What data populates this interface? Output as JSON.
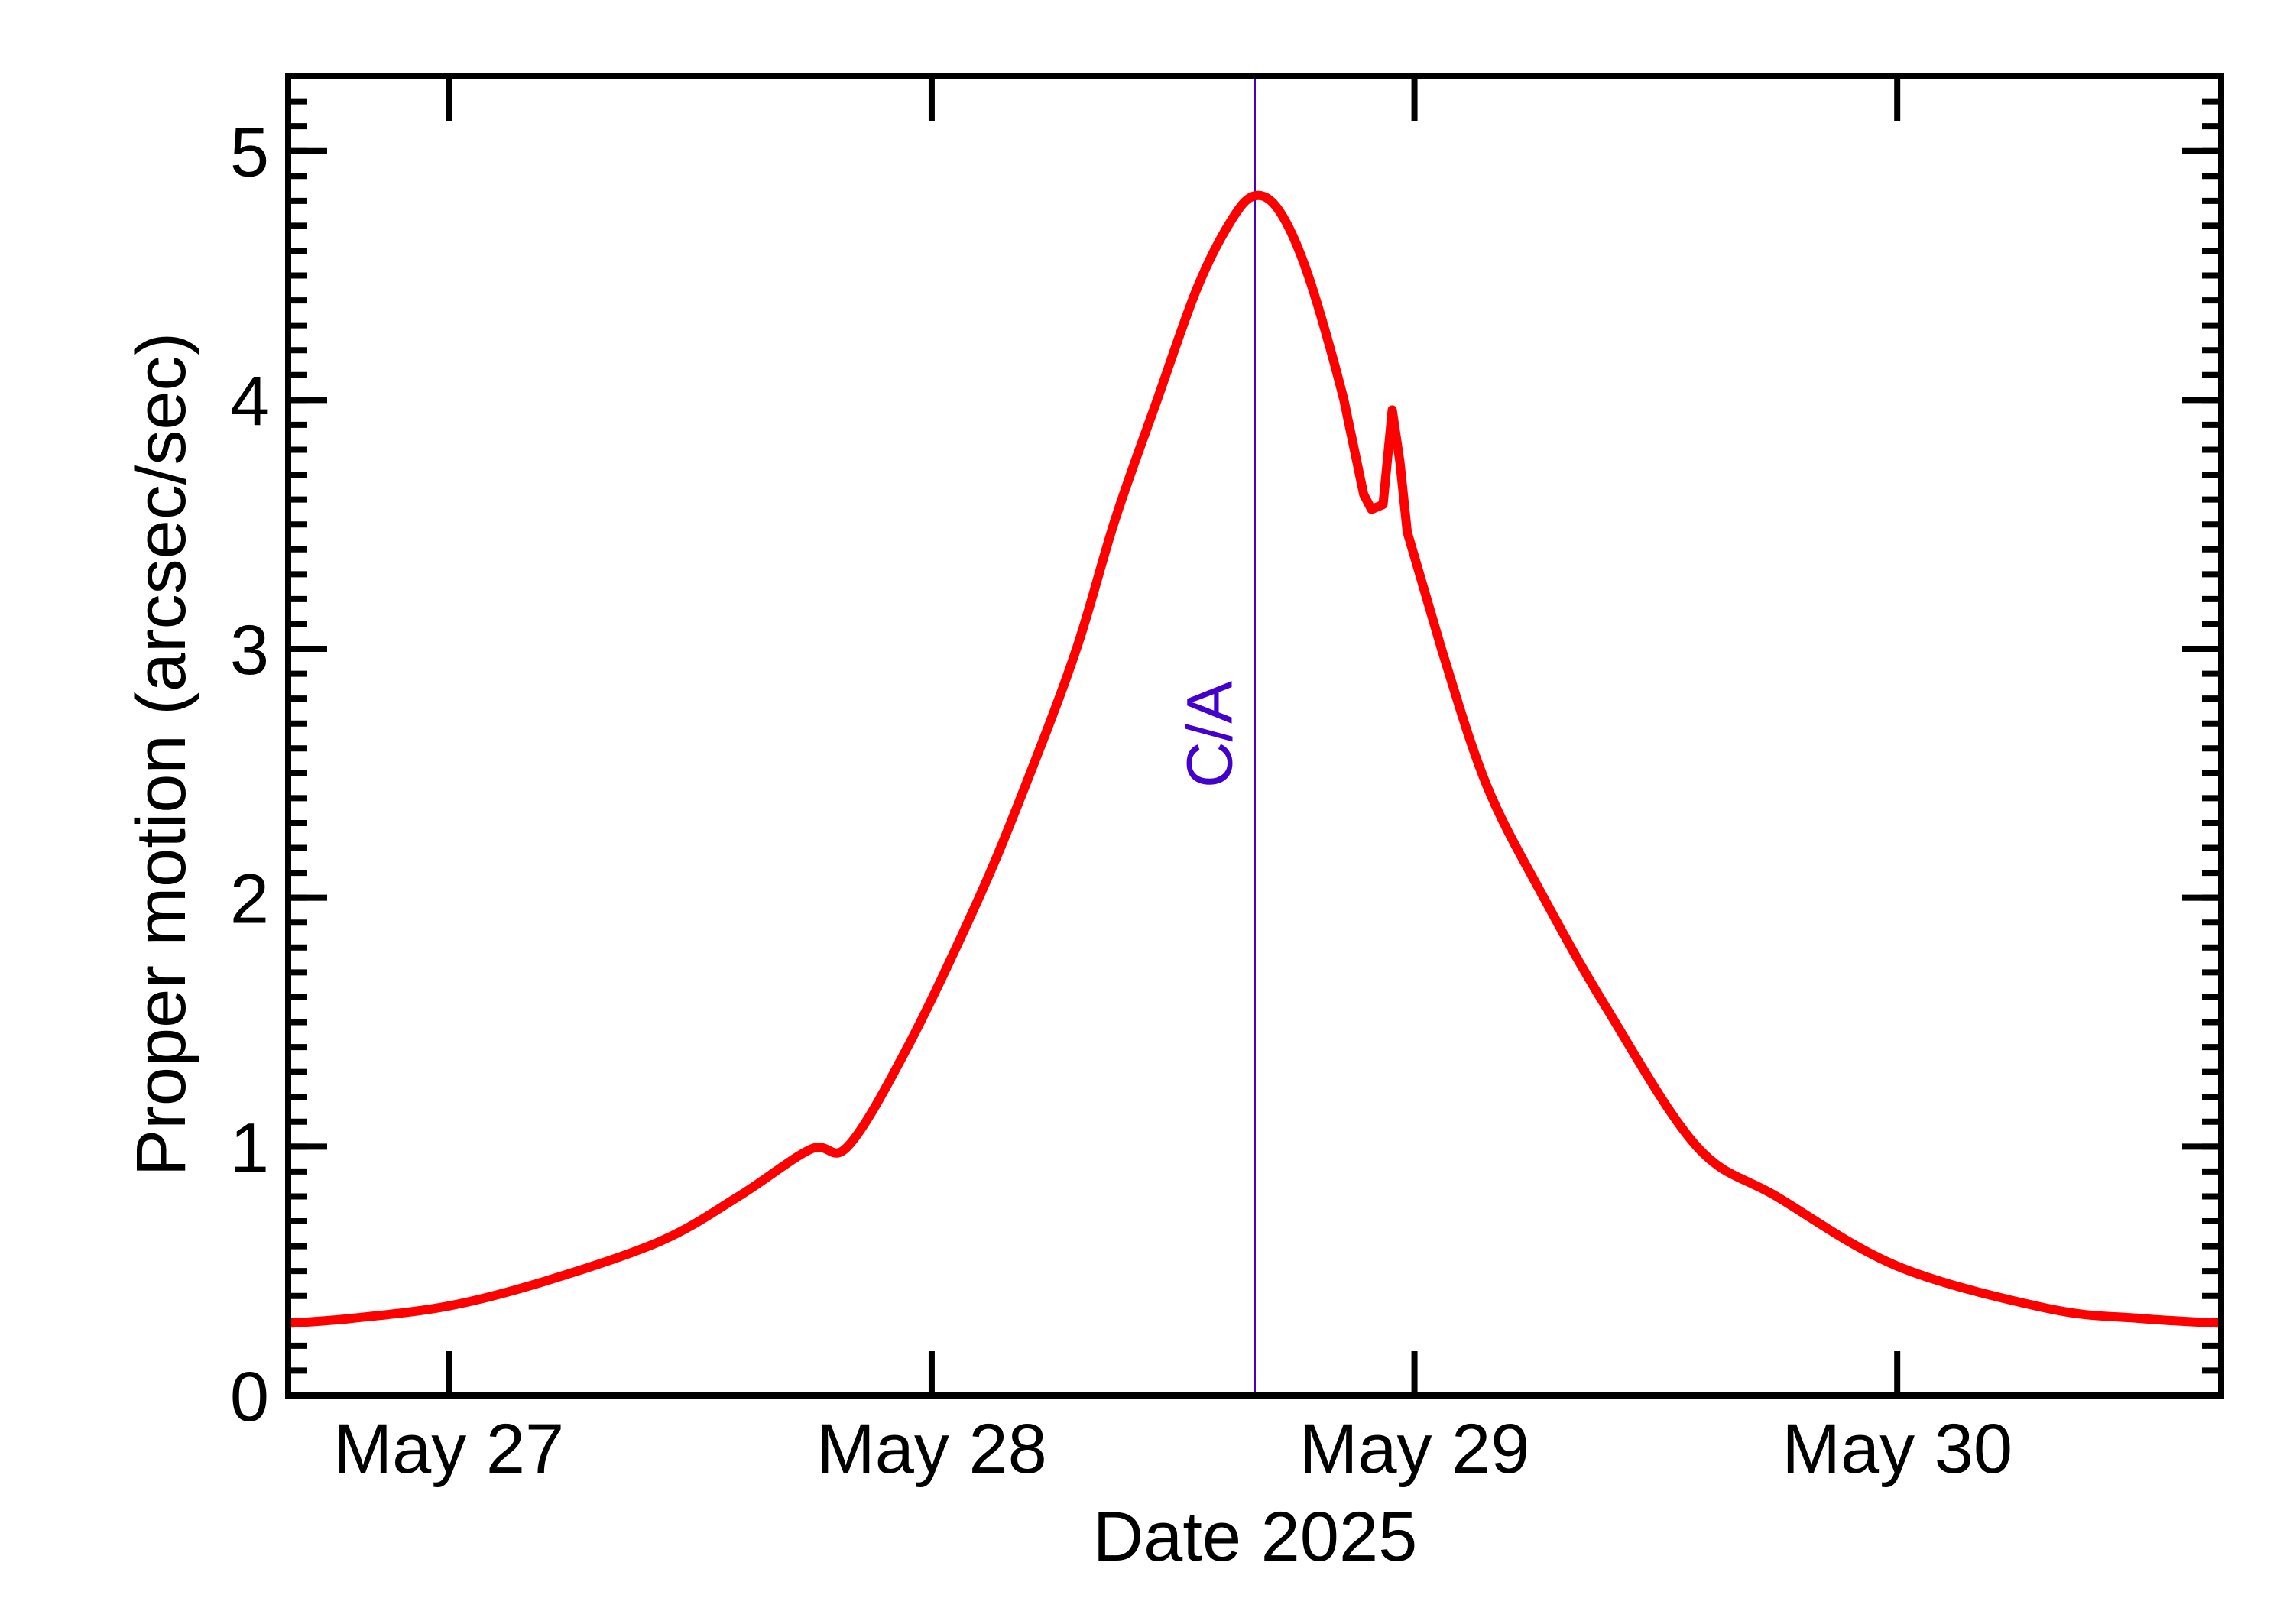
{
  "chart_data": {
    "type": "line",
    "title": "",
    "xlabel": "Date 2025",
    "ylabel": "Proper motion (arcsec/sec)",
    "x_unit": "days since May 27 00:00 (2025)",
    "xlim": [
      -0.333,
      3.671
    ],
    "ylim": [
      0,
      5.3
    ],
    "grid": false,
    "legend": null,
    "x_ticks": [
      {
        "value": 0,
        "label": "May 27"
      },
      {
        "value": 1,
        "label": "May 28"
      },
      {
        "value": 2,
        "label": "May 29"
      },
      {
        "value": 3,
        "label": "May 30"
      }
    ],
    "y_ticks": [
      {
        "value": 0,
        "label": "0"
      },
      {
        "value": 1,
        "label": "1"
      },
      {
        "value": 2,
        "label": "2"
      },
      {
        "value": 3,
        "label": "3"
      },
      {
        "value": 4,
        "label": "4"
      },
      {
        "value": 5,
        "label": "5"
      }
    ],
    "y_minor_step": 0.1,
    "annotations": [
      {
        "type": "vline",
        "x": 1.669,
        "label": "C/A",
        "color": "#4400cc"
      }
    ],
    "series": [
      {
        "name": "Proper motion",
        "color": "#ff0000",
        "x": [
          -0.333,
          -0.2,
          0.0,
          0.2,
          0.438,
          0.6,
          0.75,
          0.826,
          0.95,
          1.098,
          1.2,
          1.3,
          1.38,
          1.467,
          1.55,
          1.62,
          1.669,
          1.72,
          1.78,
          1.854,
          1.895,
          1.911,
          1.935,
          1.954,
          1.97,
          1.985,
          2.056,
          2.15,
          2.268,
          2.4,
          2.585,
          2.75,
          3.0,
          3.311,
          3.5,
          3.671
        ],
        "values": [
          0.29,
          0.31,
          0.36,
          0.46,
          0.62,
          0.8,
          0.99,
          1.0,
          1.4,
          2.0,
          2.48,
          3.0,
          3.52,
          4.0,
          4.45,
          4.72,
          4.82,
          4.76,
          4.5,
          4.0,
          3.62,
          3.56,
          3.58,
          3.96,
          3.75,
          3.47,
          3.0,
          2.45,
          2.0,
          1.55,
          1.0,
          0.8,
          0.52,
          0.35,
          0.31,
          0.29
        ]
      }
    ]
  },
  "axes": {
    "xlabel": "Date 2025",
    "ylabel": "Proper motion (arcsec/sec)",
    "annotation_label": "C/A"
  },
  "colors": {
    "curve": "#ff0000",
    "ca_line": "#4400cc",
    "axes": "#000000",
    "background": "#ffffff"
  }
}
